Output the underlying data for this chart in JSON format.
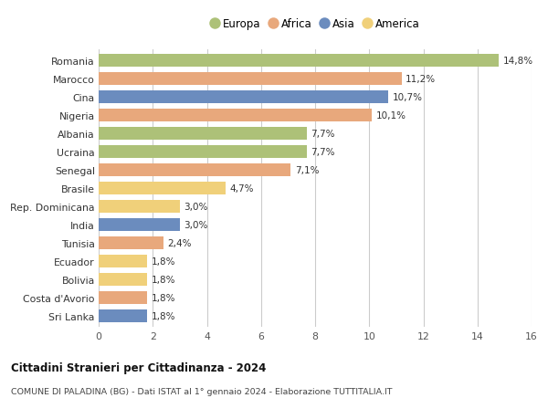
{
  "countries": [
    "Romania",
    "Marocco",
    "Cina",
    "Nigeria",
    "Albania",
    "Ucraina",
    "Senegal",
    "Brasile",
    "Rep. Dominicana",
    "India",
    "Tunisia",
    "Ecuador",
    "Bolivia",
    "Costa d'Avorio",
    "Sri Lanka"
  ],
  "values": [
    14.8,
    11.2,
    10.7,
    10.1,
    7.7,
    7.7,
    7.1,
    4.7,
    3.0,
    3.0,
    2.4,
    1.8,
    1.8,
    1.8,
    1.8
  ],
  "continents": [
    "Europa",
    "Africa",
    "Asia",
    "Africa",
    "Europa",
    "Europa",
    "Africa",
    "America",
    "America",
    "Asia",
    "Africa",
    "America",
    "America",
    "Africa",
    "Asia"
  ],
  "continent_colors": {
    "Europa": "#adc178",
    "Africa": "#e8a87c",
    "Asia": "#6b8cbe",
    "America": "#f0d07a"
  },
  "legend_order": [
    "Europa",
    "Africa",
    "Asia",
    "America"
  ],
  "title": "Cittadini Stranieri per Cittadinanza - 2024",
  "subtitle": "COMUNE DI PALADINA (BG) - Dati ISTAT al 1° gennaio 2024 - Elaborazione TUTTITALIA.IT",
  "xlim": [
    0,
    16
  ],
  "xticks": [
    0,
    2,
    4,
    6,
    8,
    10,
    12,
    14,
    16
  ],
  "background_color": "#ffffff",
  "grid_color": "#cccccc",
  "bar_height": 0.72
}
